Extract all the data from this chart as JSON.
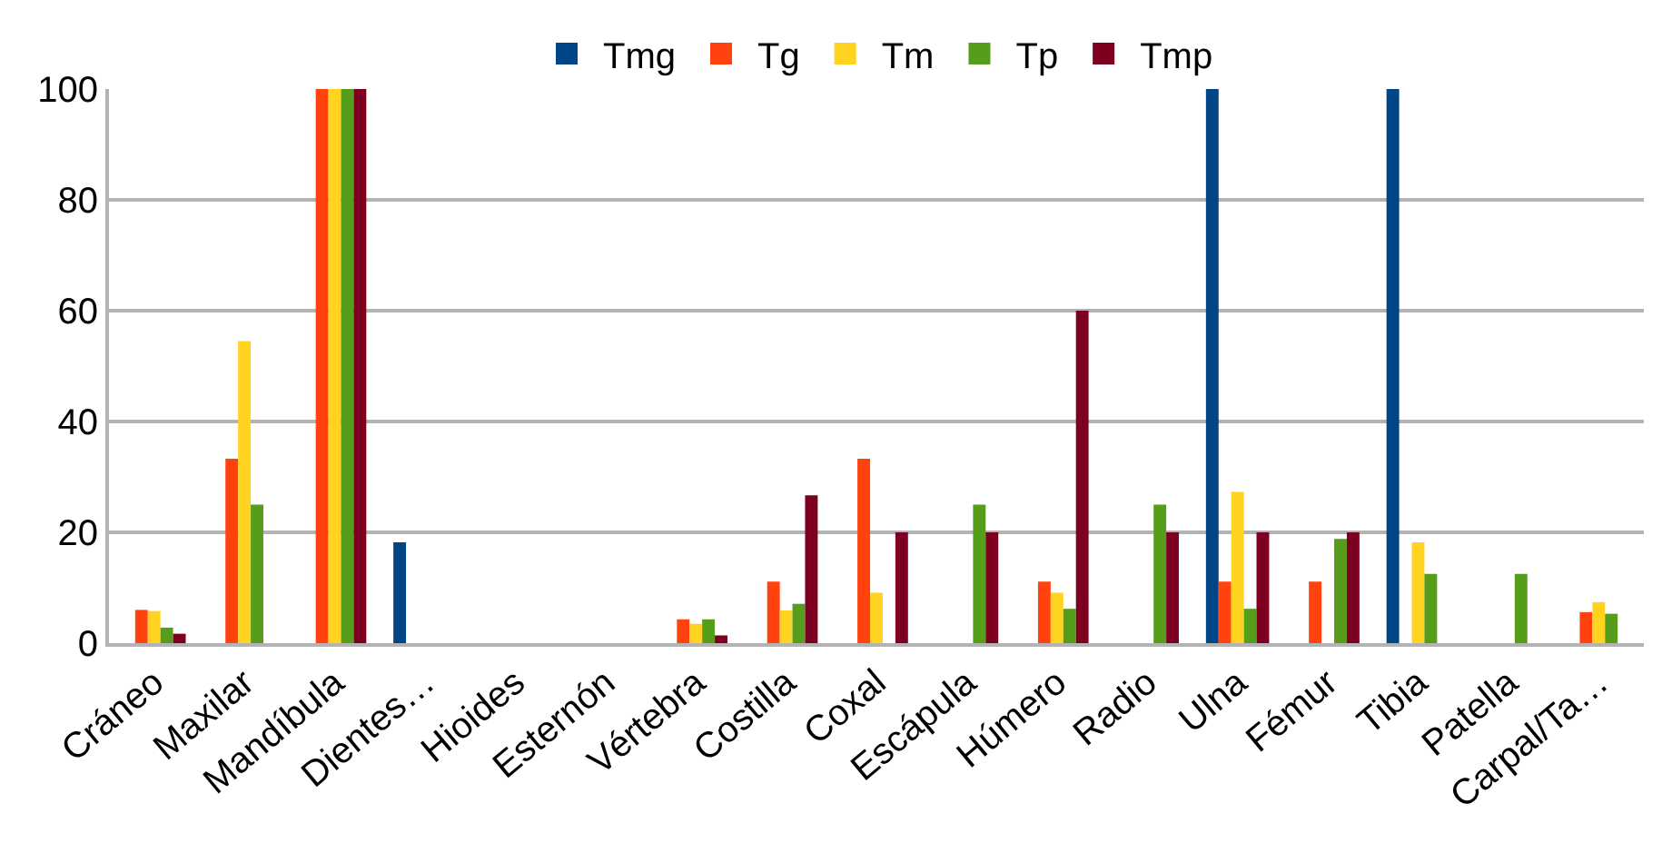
{
  "chart_data": {
    "type": "bar",
    "categories": [
      "Cráneo",
      "Maxilar",
      "Mandíbula",
      "Dientes…",
      "Hioides",
      "Esternón",
      "Vértebra",
      "Costilla",
      "Coxal",
      "Escápula",
      "Húmero",
      "Radio",
      "Ulna",
      "Fémur",
      "Tibia",
      "Patella",
      "Carpal/Ta…"
    ],
    "series": [
      {
        "name": "Tmg",
        "color": "#004586",
        "values": [
          0,
          0,
          0,
          18.2,
          0,
          0,
          0,
          0,
          0,
          0,
          0,
          0,
          100,
          0,
          100,
          0,
          0
        ]
      },
      {
        "name": "Tg",
        "color": "#ff420e",
        "values": [
          6,
          33.3,
          100,
          0,
          0,
          0,
          4.3,
          11.1,
          33.3,
          0,
          11.1,
          0,
          11.1,
          11.1,
          0,
          0,
          5.6
        ]
      },
      {
        "name": "Tm",
        "color": "#ffd320",
        "values": [
          5.8,
          54.5,
          100,
          0,
          0,
          0,
          3.5,
          5.9,
          9.1,
          0,
          9.1,
          0,
          27.3,
          0,
          18.2,
          0,
          7.4
        ]
      },
      {
        "name": "Tp",
        "color": "#579d1c",
        "values": [
          2.8,
          25,
          100,
          0,
          0,
          0,
          4.3,
          7.1,
          0,
          25,
          6.2,
          25,
          6.2,
          18.8,
          12.5,
          12.5,
          5.3
        ]
      },
      {
        "name": "Tmp",
        "color": "#7e0021",
        "values": [
          1.7,
          0,
          100,
          0,
          0,
          0,
          1.4,
          26.7,
          20,
          20,
          60,
          20,
          20,
          20,
          0,
          0,
          0
        ]
      }
    ],
    "ylim": [
      0,
      100
    ],
    "yticks": [
      0,
      20,
      40,
      60,
      80,
      100
    ],
    "grid": "y",
    "legend": "top"
  }
}
